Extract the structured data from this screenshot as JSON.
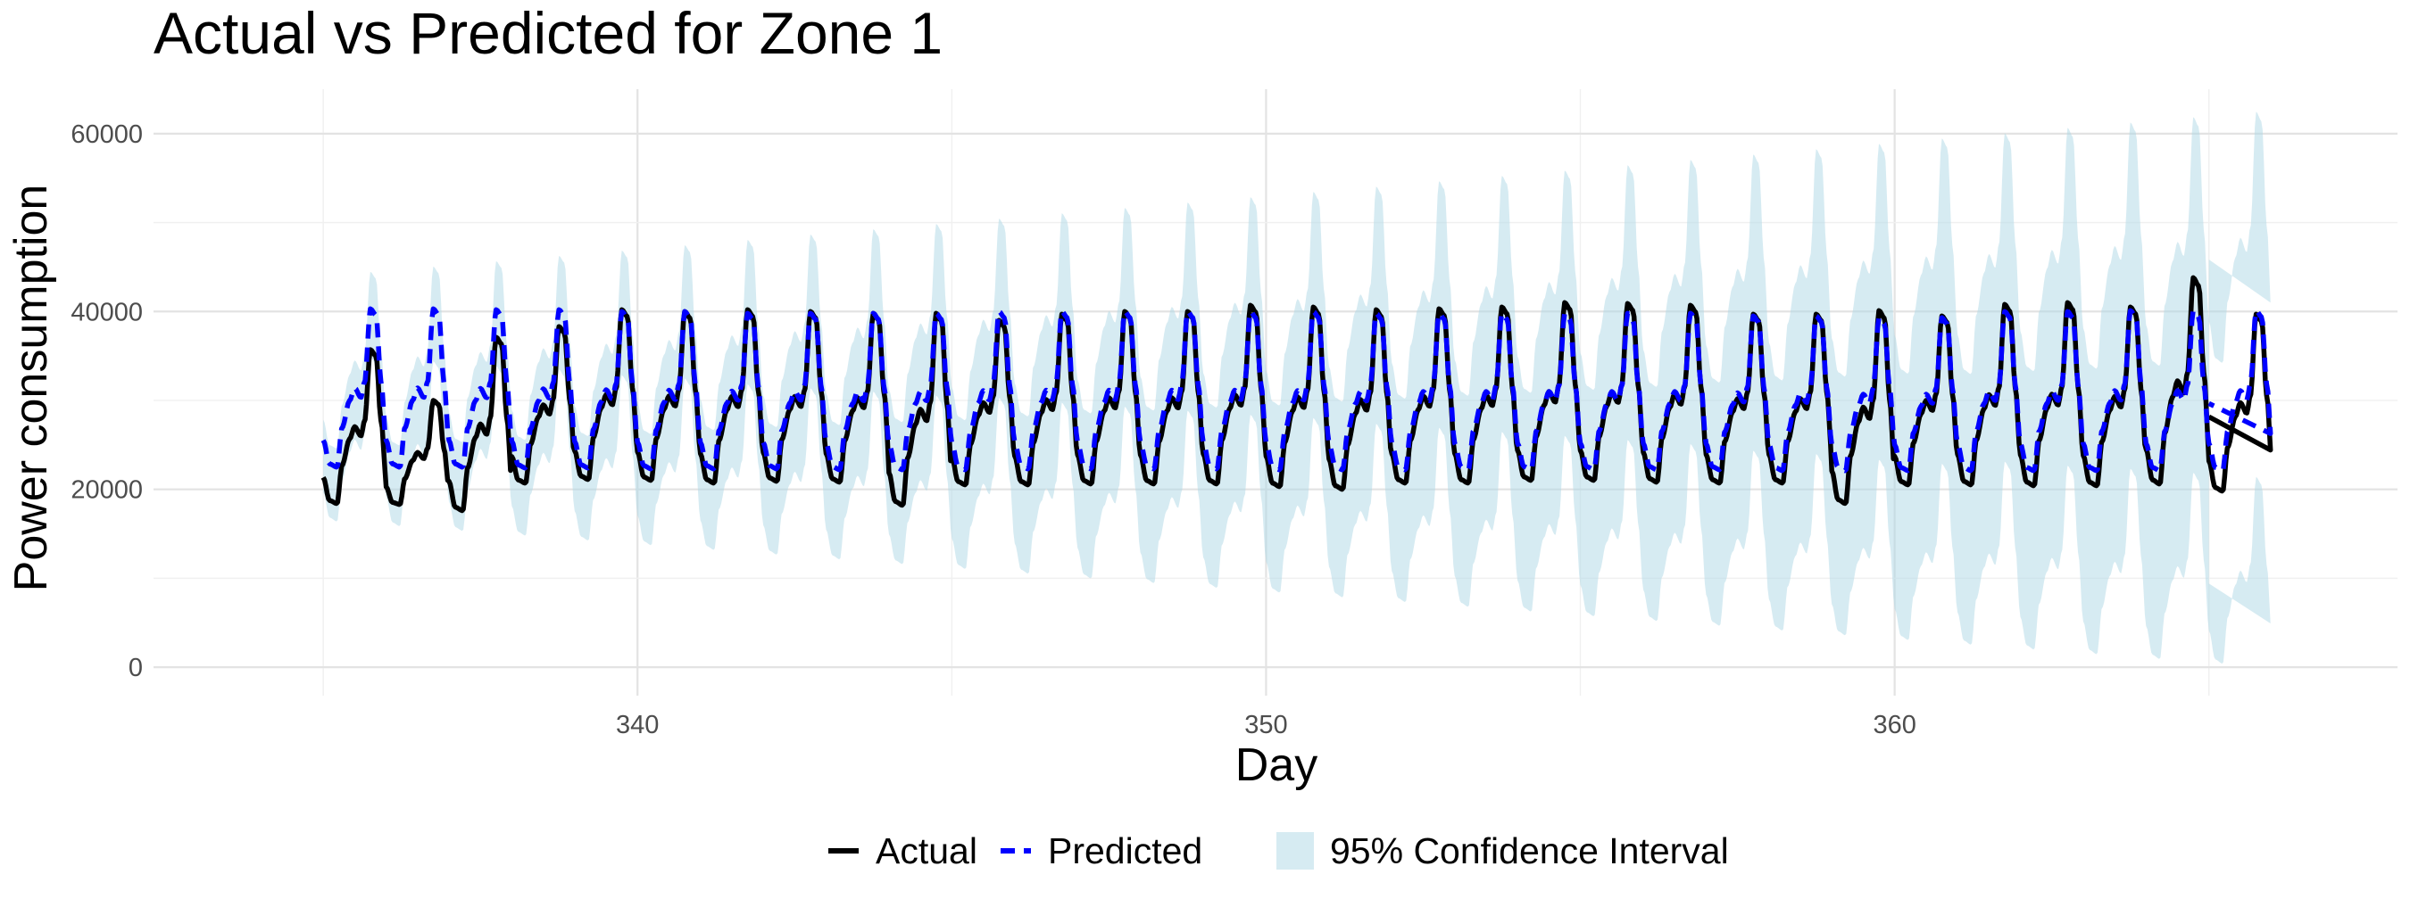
{
  "chart_data": {
    "type": "line",
    "title": "Actual vs Predicted for Zone 1",
    "xlabel": "Day",
    "ylabel": "Power consumption",
    "xlim": [
      332.3,
      368.0
    ],
    "ylim": [
      -3200,
      65000
    ],
    "x_ticks": [
      340,
      350,
      360
    ],
    "y_ticks": [
      0,
      20000,
      40000,
      60000
    ],
    "grid": true,
    "legend_position": "bottom",
    "colors": {
      "actual": "#000000",
      "predicted": "#0000ff",
      "confidence_interval": "#add8e6"
    },
    "series": [
      {
        "name": "Actual",
        "style": "solid",
        "day_start": 335,
        "day_end": 365,
        "daily_peak": [
          35700,
          30000,
          37100,
          38300,
          40200,
          40000,
          40200,
          40000,
          39800,
          39800,
          39000,
          39700,
          40000,
          40000,
          40700,
          40500,
          40200,
          40300,
          40500,
          41000,
          40900,
          40700,
          39700,
          39700,
          40100,
          39500,
          40800,
          41000,
          40500,
          43800,
          39700
        ],
        "daily_trough": [
          18400,
          18300,
          17600,
          20700,
          21100,
          21000,
          20700,
          20900,
          20800,
          18200,
          20500,
          20500,
          20600,
          20600,
          20600,
          20300,
          20000,
          20700,
          20700,
          21000,
          21000,
          20800,
          20700,
          20700,
          18400,
          20500,
          20500,
          20400,
          20400,
          20600,
          19800
        ]
      },
      {
        "name": "Predicted",
        "style": "dashed",
        "day_start": 335,
        "day_end": 365,
        "daily_peak": [
          40300,
          40300,
          40200,
          40200,
          40000,
          40000,
          39800,
          39800,
          39800,
          39800,
          40000,
          40000,
          40000,
          40000,
          40000,
          40000,
          39800,
          39800,
          39800,
          39800,
          39800,
          39800,
          39500,
          39500,
          39300,
          39300,
          40000,
          40000,
          40100,
          40100,
          40100
        ],
        "daily_trough": [
          22500,
          22500,
          22500,
          22400,
          22400,
          22300,
          22300,
          22300,
          22200,
          22200,
          22200,
          22300,
          22300,
          22300,
          22300,
          22200,
          22200,
          22200,
          22200,
          22200,
          22200,
          22200,
          22200,
          22100,
          22100,
          22100,
          22100,
          22100,
          22100,
          22100,
          22100
        ]
      }
    ],
    "confidence_band": {
      "name": "95% Confidence Interval",
      "day_start": 335,
      "day_end": 365,
      "upper_peak_start": 44000,
      "upper_peak_end": 62000,
      "lower_trough_start": 16500,
      "lower_trough_end": 500
    }
  }
}
